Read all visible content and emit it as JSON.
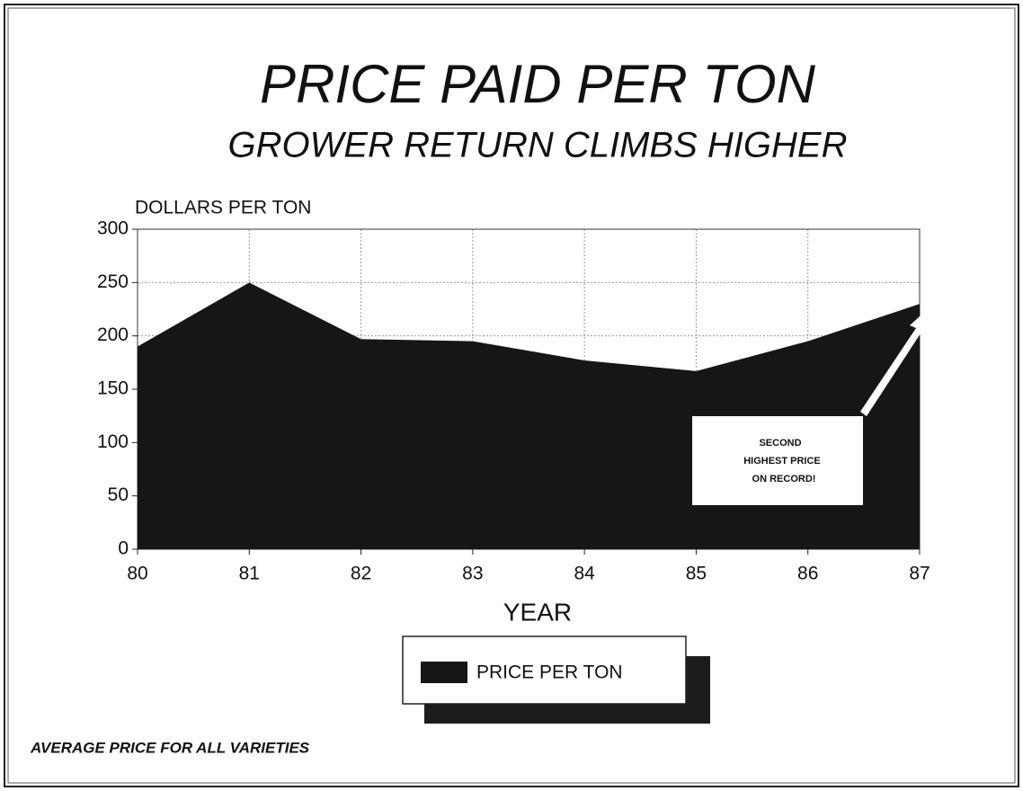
{
  "chart_data": {
    "type": "area",
    "title": "PRICE PAID PER TON",
    "subtitle": "GROWER RETURN CLIMBS HIGHER",
    "y_axis_label": "DOLLARS PER TON",
    "x_axis_label": "YEAR",
    "x": [
      80,
      81,
      82,
      83,
      84,
      85,
      86,
      87
    ],
    "xlim": [
      80,
      87
    ],
    "xticks": [
      80,
      81,
      82,
      83,
      84,
      85,
      86,
      87
    ],
    "series": [
      {
        "name": "PRICE PER TON",
        "color": "#161616",
        "values": [
          190,
          250,
          197,
          195,
          177,
          167,
          195,
          230
        ]
      }
    ],
    "ylim": [
      0,
      300
    ],
    "yticks": [
      0,
      50,
      100,
      150,
      200,
      250,
      300
    ],
    "grid": true,
    "annotation": [
      "SECOND",
      "HIGHEST PRICE",
      "ON RECORD!"
    ],
    "footnote": "AVERAGE PRICE FOR ALL VARIETIES"
  }
}
